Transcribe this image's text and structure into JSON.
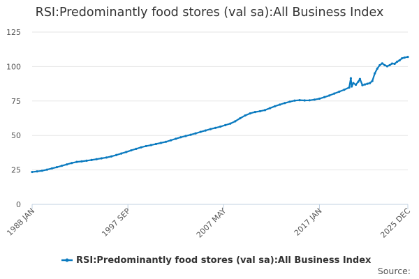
{
  "colors": {
    "series": "#0a7abf",
    "grid": "#e6e6e6",
    "axis": "#c0d0e0",
    "text": "#333333"
  },
  "source_label": "Source:",
  "chart_data": {
    "type": "line",
    "title": "RSI:Predominantly food stores (val sa):All Business Index",
    "xlabel": "",
    "ylabel": "",
    "ylim": [
      0,
      125
    ],
    "yticks": [
      0,
      25,
      50,
      75,
      100,
      125
    ],
    "xlim": [
      "1988-01",
      "2025-12"
    ],
    "xticks": [
      {
        "label": "1988 JAN",
        "date": "1988-01"
      },
      {
        "label": "1997 SEP",
        "date": "1997-09"
      },
      {
        "label": "2007 MAY",
        "date": "2007-05"
      },
      {
        "label": "2017 JAN",
        "date": "2017-01"
      },
      {
        "label": "2025 DEC",
        "date": "2025-12"
      }
    ],
    "grid": true,
    "legend_position": "bottom",
    "series": [
      {
        "name": "RSI:Predominantly food stores (val sa):All Business Index",
        "points": [
          [
            "1988-01",
            23.5
          ],
          [
            "1988-07",
            23.9
          ],
          [
            "1989-01",
            24.4
          ],
          [
            "1989-07",
            25.2
          ],
          [
            "1990-01",
            26.1
          ],
          [
            "1990-07",
            27.0
          ],
          [
            "1991-01",
            28.0
          ],
          [
            "1991-07",
            29.0
          ],
          [
            "1992-01",
            30.0
          ],
          [
            "1992-07",
            30.8
          ],
          [
            "1993-01",
            31.2
          ],
          [
            "1993-07",
            31.7
          ],
          [
            "1994-01",
            32.2
          ],
          [
            "1994-07",
            32.8
          ],
          [
            "1995-01",
            33.4
          ],
          [
            "1995-07",
            34.0
          ],
          [
            "1996-01",
            34.8
          ],
          [
            "1996-07",
            35.8
          ],
          [
            "1997-01",
            36.9
          ],
          [
            "1997-07",
            38.0
          ],
          [
            "1998-01",
            39.2
          ],
          [
            "1998-07",
            40.3
          ],
          [
            "1999-01",
            41.4
          ],
          [
            "1999-07",
            42.3
          ],
          [
            "2000-01",
            43.0
          ],
          [
            "2000-07",
            43.8
          ],
          [
            "2001-01",
            44.6
          ],
          [
            "2001-07",
            45.4
          ],
          [
            "2002-01",
            46.5
          ],
          [
            "2002-07",
            47.6
          ],
          [
            "2003-01",
            48.7
          ],
          [
            "2003-07",
            49.6
          ],
          [
            "2004-01",
            50.5
          ],
          [
            "2004-07",
            51.5
          ],
          [
            "2005-01",
            52.6
          ],
          [
            "2005-07",
            53.6
          ],
          [
            "2006-01",
            54.6
          ],
          [
            "2006-07",
            55.5
          ],
          [
            "2007-01",
            56.4
          ],
          [
            "2007-07",
            57.5
          ],
          [
            "2008-01",
            58.6
          ],
          [
            "2008-07",
            60.3
          ],
          [
            "2009-01",
            62.5
          ],
          [
            "2009-07",
            64.5
          ],
          [
            "2010-01",
            66.0
          ],
          [
            "2010-07",
            67.0
          ],
          [
            "2011-01",
            67.6
          ],
          [
            "2011-07",
            68.4
          ],
          [
            "2012-01",
            69.8
          ],
          [
            "2012-07",
            71.2
          ],
          [
            "2013-01",
            72.4
          ],
          [
            "2013-07",
            73.5
          ],
          [
            "2014-01",
            74.5
          ],
          [
            "2014-07",
            75.3
          ],
          [
            "2015-01",
            75.6
          ],
          [
            "2015-07",
            75.4
          ],
          [
            "2016-01",
            75.5
          ],
          [
            "2016-07",
            76.0
          ],
          [
            "2017-01",
            76.7
          ],
          [
            "2017-07",
            77.8
          ],
          [
            "2018-01",
            79.0
          ],
          [
            "2018-07",
            80.4
          ],
          [
            "2019-01",
            81.8
          ],
          [
            "2019-07",
            83.2
          ],
          [
            "2020-01",
            84.8
          ],
          [
            "2020-03",
            91.5
          ],
          [
            "2020-04",
            85.5
          ],
          [
            "2020-06",
            88.0
          ],
          [
            "2020-09",
            86.8
          ],
          [
            "2020-12",
            89.0
          ],
          [
            "2021-02",
            91.0
          ],
          [
            "2021-05",
            86.5
          ],
          [
            "2021-08",
            87.0
          ],
          [
            "2021-11",
            87.5
          ],
          [
            "2022-02",
            88.0
          ],
          [
            "2022-05",
            89.5
          ],
          [
            "2022-08",
            95.0
          ],
          [
            "2022-11",
            98.5
          ],
          [
            "2023-02",
            101.0
          ],
          [
            "2023-05",
            102.3
          ],
          [
            "2023-08",
            101.0
          ],
          [
            "2023-11",
            100.2
          ],
          [
            "2024-02",
            101.0
          ],
          [
            "2024-05",
            102.2
          ],
          [
            "2024-08",
            102.0
          ],
          [
            "2024-11",
            103.5
          ],
          [
            "2025-02",
            104.5
          ],
          [
            "2025-05",
            106.0
          ],
          [
            "2025-08",
            106.5
          ],
          [
            "2025-12",
            107.0
          ]
        ]
      }
    ]
  }
}
